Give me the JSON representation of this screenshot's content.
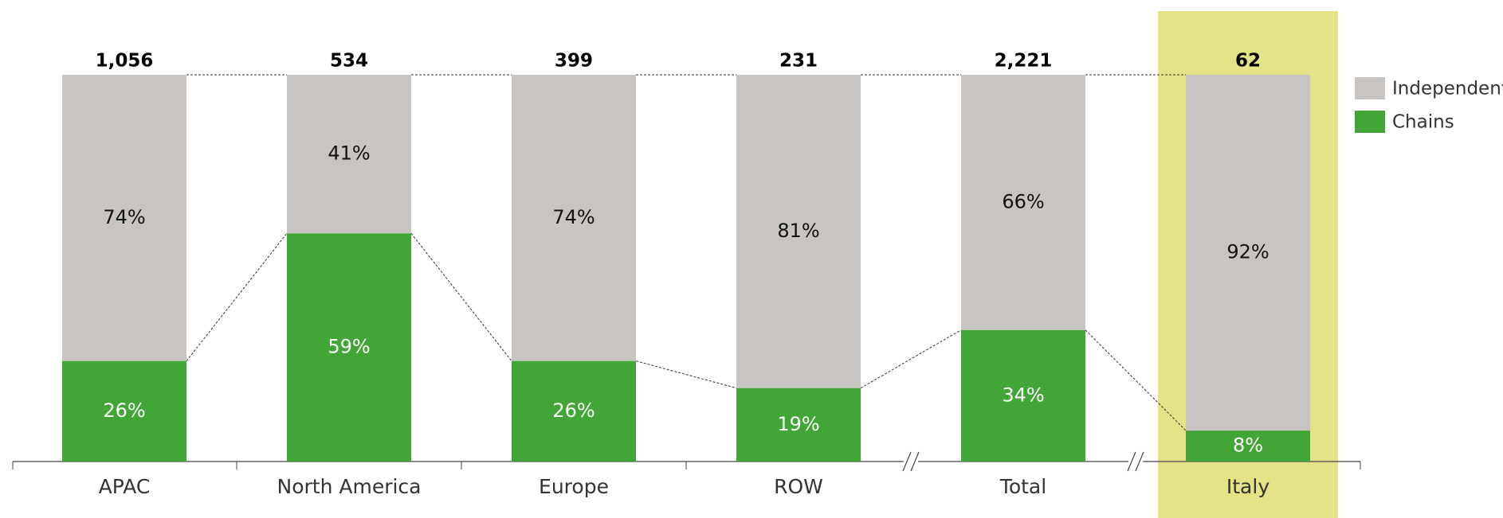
{
  "chart_data": {
    "type": "bar",
    "stacked": true,
    "categories": [
      "APAC",
      "North America",
      "Europe",
      "ROW",
      "Total",
      "Italy"
    ],
    "series": [
      {
        "name": "Chains",
        "color": "#41a636",
        "values": [
          26,
          59,
          26,
          19,
          34,
          8
        ],
        "value_labels": [
          "26%",
          "59%",
          "26%",
          "19%",
          "34%",
          "8%"
        ]
      },
      {
        "name": "Independent",
        "color": "#c7c4c1",
        "values": [
          74,
          41,
          74,
          81,
          66,
          92
        ],
        "value_labels": [
          "74%",
          "41%",
          "74%",
          "81%",
          "66%",
          "92%"
        ]
      }
    ],
    "totals": {
      "values": [
        1056,
        534,
        399,
        231,
        2221,
        62
      ],
      "value_labels": [
        "1,056",
        "534",
        "399",
        "231",
        "2,221",
        "62"
      ]
    },
    "highlight": {
      "category": "Italy",
      "color": "#e4e388"
    },
    "ylim": [
      0,
      100
    ]
  }
}
